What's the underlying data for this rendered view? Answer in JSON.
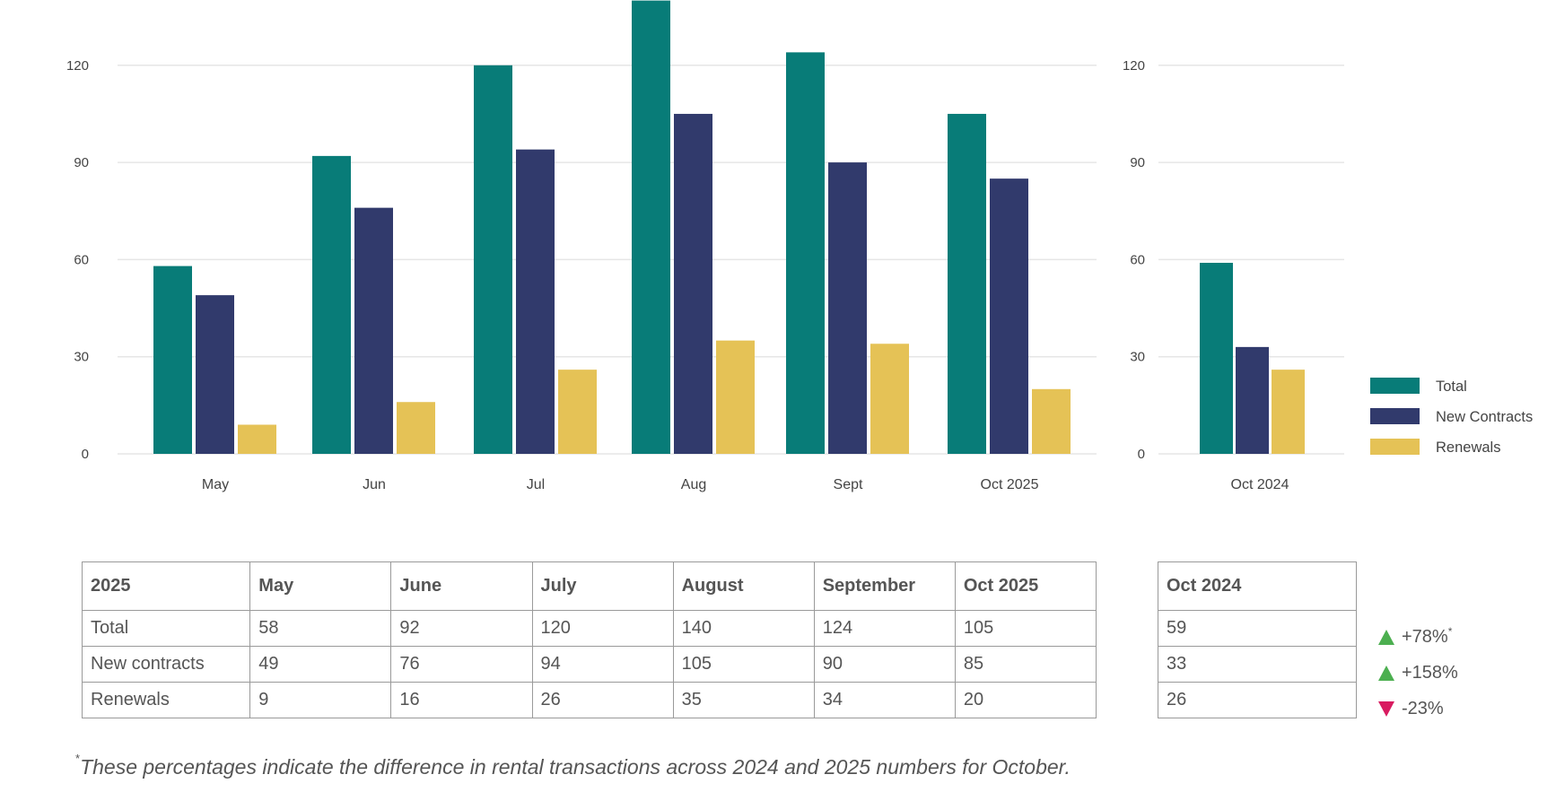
{
  "chart_data": [
    {
      "type": "bar",
      "categories": [
        "May",
        "Jun",
        "Jul",
        "Aug",
        "Sept",
        "Oct 2025"
      ],
      "series": [
        {
          "name": "Total",
          "values": [
            58,
            92,
            120,
            140,
            124,
            105
          ]
        },
        {
          "name": "New Contracts",
          "values": [
            49,
            76,
            94,
            105,
            90,
            85
          ]
        },
        {
          "name": "Renewals",
          "values": [
            9,
            16,
            26,
            35,
            34,
            20
          ]
        }
      ],
      "y_ticks": [
        0,
        30,
        60,
        90,
        120
      ],
      "ylim": [
        0,
        140
      ],
      "grid": true
    },
    {
      "type": "bar",
      "categories": [
        "Oct 2024"
      ],
      "series": [
        {
          "name": "Total",
          "values": [
            59
          ]
        },
        {
          "name": "New Contracts",
          "values": [
            33
          ]
        },
        {
          "name": "Renewals",
          "values": [
            26
          ]
        }
      ],
      "y_ticks": [
        0,
        30,
        60,
        90,
        120
      ],
      "ylim": [
        0,
        140
      ],
      "grid": true,
      "legend": {
        "position": "right",
        "entries": [
          "Total",
          "New Contracts",
          "Renewals"
        ]
      }
    }
  ],
  "colors": {
    "total": "#087c78",
    "new_contracts": "#313a6c",
    "renewals": "#e5c256",
    "grid": "#e6e6e6",
    "up": "#4caf50",
    "down": "#d81b60"
  },
  "table_2025": {
    "header": [
      "2025",
      "May",
      "June",
      "July",
      "August",
      "September",
      "Oct 2025"
    ],
    "rows": [
      [
        "Total",
        "58",
        "92",
        "120",
        "140",
        "124",
        "105"
      ],
      [
        "New contracts",
        "49",
        "76",
        "94",
        "105",
        "90",
        "85"
      ],
      [
        "Renewals",
        "9",
        "16",
        "26",
        "35",
        "34",
        "20"
      ]
    ]
  },
  "table_2024": {
    "header": "Oct 2024",
    "rows": [
      "59",
      "33",
      "26"
    ]
  },
  "changes": [
    {
      "text": "+78%",
      "direction": "up",
      "note": "*"
    },
    {
      "text": "+158%",
      "direction": "up",
      "note": ""
    },
    {
      "text": "-23%",
      "direction": "down",
      "note": ""
    }
  ],
  "footnote": {
    "mark": "*",
    "text": "These percentages indicate the difference in rental transactions across 2024 and 2025 numbers for October."
  }
}
